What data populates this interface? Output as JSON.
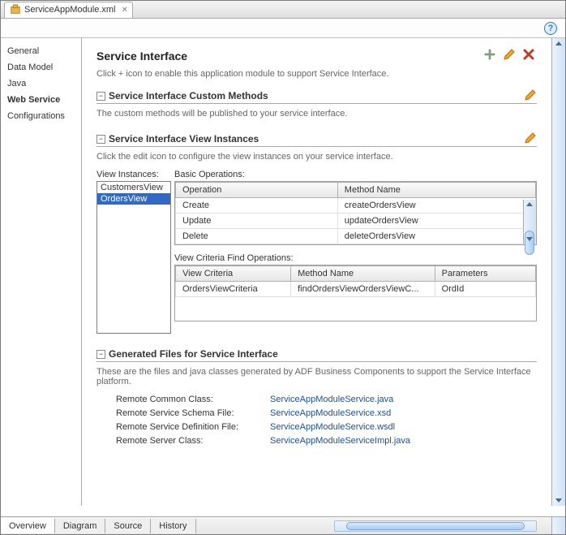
{
  "tab": {
    "filename": "ServiceAppModule.xml"
  },
  "leftnav": {
    "items": [
      "General",
      "Data Model",
      "Java",
      "Web Service",
      "Configurations"
    ],
    "active_index": 3
  },
  "header": {
    "title": "Service Interface",
    "hint": "Click + icon to enable this application module to support Service Interface."
  },
  "custom_methods": {
    "title": "Service Interface Custom Methods",
    "desc": "The custom methods will be published to your service interface."
  },
  "view_instances": {
    "title": "Service Interface View Instances",
    "desc": "Click the edit icon to configure the view instances on your service interface.",
    "label_instances": "View Instances:",
    "label_basic_ops": "Basic Operations:",
    "label_vc_ops": "View Criteria Find Operations:",
    "instances": [
      "CustomersView",
      "OrdersView"
    ],
    "selected_instance_index": 1,
    "ops_columns": [
      "Operation",
      "Method Name"
    ],
    "ops_rows": [
      [
        "Create",
        "createOrdersView"
      ],
      [
        "Update",
        "updateOrdersView"
      ],
      [
        "Delete",
        "deleteOrdersView"
      ]
    ],
    "vc_columns": [
      "View Criteria",
      "Method Name",
      "Parameters"
    ],
    "vc_rows": [
      [
        "OrdersViewCriteria",
        "findOrdersViewOrdersViewC...",
        "OrdId"
      ]
    ]
  },
  "genfiles": {
    "title": "Generated Files for Service Interface",
    "desc": "These are the files and java classes generated by ADF Business Components to support the Service Interface platform.",
    "rows": [
      {
        "label": "Remote Common Class:",
        "link": "ServiceAppModuleService.java"
      },
      {
        "label": "Remote Service Schema File:",
        "link": "ServiceAppModuleService.xsd"
      },
      {
        "label": "Remote Service Definition File:",
        "link": "ServiceAppModuleService.wsdl"
      },
      {
        "label": "Remote Server Class:",
        "link": "ServiceAppModuleServiceImpl.java"
      }
    ]
  },
  "bottom_tabs": {
    "items": [
      "Overview",
      "Diagram",
      "Source",
      "History"
    ],
    "active_index": 0
  },
  "colors": {
    "link": "#1a4f9c",
    "selection": "#316ac5",
    "pencil": "#f5a623",
    "plus": "#6f8f6f",
    "delete": "#c23b22"
  }
}
